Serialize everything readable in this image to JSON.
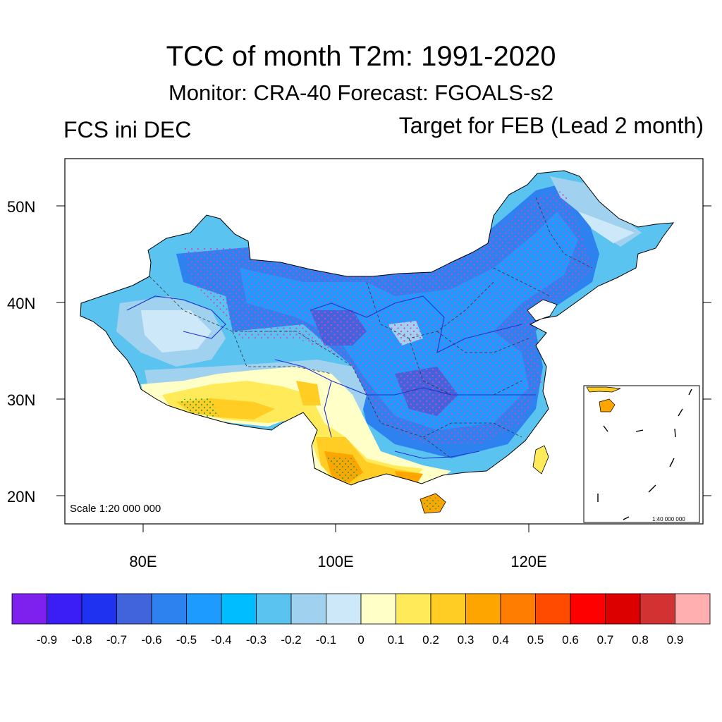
{
  "title": "TCC of month T2m: 1991-2020",
  "subtitle": "Monitor: CRA-40   Forecast: FGOALS-s2",
  "left_label": "FCS ini DEC",
  "right_label": "Target for FEB (Lead 2 month)",
  "scale_label": "Scale 1:20 000 000",
  "inset_scale_label": "1:40 000 000",
  "lat_labels": [
    "50N",
    "40N",
    "30N",
    "20N"
  ],
  "lon_labels": [
    "80E",
    "100E",
    "120E"
  ],
  "colorbar": {
    "colors": [
      "#7e20ee",
      "#3a1ef5",
      "#1e32f0",
      "#4164dc",
      "#2d82f0",
      "#1e9bff",
      "#00bdff",
      "#5ac3f0",
      "#a0d2f0",
      "#cde8f8",
      "#ffffc8",
      "#ffeb5a",
      "#ffcd23",
      "#ffa500",
      "#ff7d00",
      "#ff4b00",
      "#ff0000",
      "#dc0000",
      "#d23232",
      "#ffafaf"
    ],
    "labels": [
      "-0.9",
      "-0.8",
      "-0.7",
      "-0.6",
      "-0.5",
      "-0.4",
      "-0.3",
      "-0.2",
      "-0.1",
      "0",
      "0.1",
      "0.2",
      "0.3",
      "0.4",
      "0.5",
      "0.6",
      "0.7",
      "0.8",
      "0.9"
    ]
  },
  "stipple_colors": {
    "significant_negative": "#e040c0",
    "significant_positive": "#22aa44"
  }
}
